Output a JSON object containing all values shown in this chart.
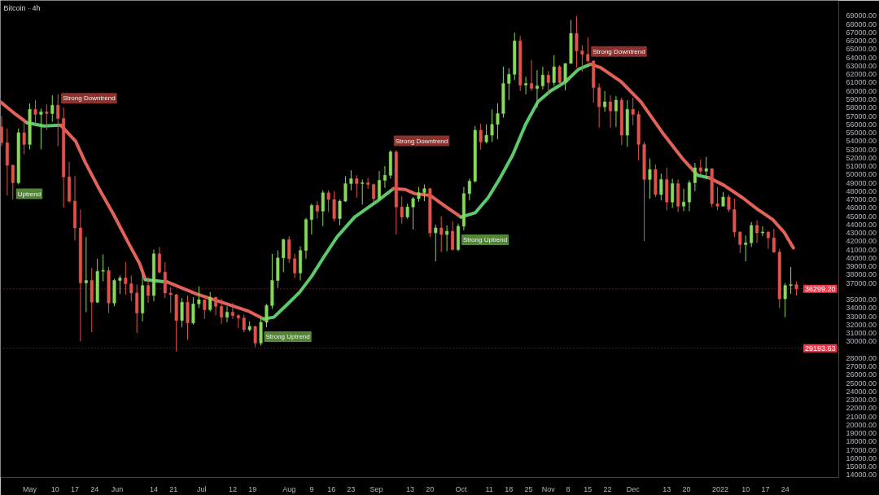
{
  "chart_data": {
    "type": "candlestick",
    "title": "Bitcoin · 4h",
    "xlim": [
      "2021-04-20T14:00",
      "2022-02-12"
    ],
    "ylim": [
      13700,
      70850
    ],
    "xticks": [
      {
        "value": "2021-05-01",
        "label": "May"
      },
      {
        "value": "2021-05-10",
        "label": "10"
      },
      {
        "value": "2021-05-17",
        "label": "17"
      },
      {
        "value": "2021-05-24",
        "label": "24"
      },
      {
        "value": "2021-06-01",
        "label": "Jun"
      },
      {
        "value": "2021-06-14",
        "label": "14"
      },
      {
        "value": "2021-06-21",
        "label": "21"
      },
      {
        "value": "2021-07-01",
        "label": "Jul"
      },
      {
        "value": "2021-07-12",
        "label": "12"
      },
      {
        "value": "2021-07-19",
        "label": "19"
      },
      {
        "value": "2021-08-01",
        "label": "Aug"
      },
      {
        "value": "2021-08-09",
        "label": "9"
      },
      {
        "value": "2021-08-16",
        "label": "16"
      },
      {
        "value": "2021-08-23",
        "label": "23"
      },
      {
        "value": "2021-09-01",
        "label": "Sep"
      },
      {
        "value": "2021-09-13",
        "label": "13"
      },
      {
        "value": "2021-09-20",
        "label": "20"
      },
      {
        "value": "2021-10-01",
        "label": "Oct"
      },
      {
        "value": "2021-10-11",
        "label": "11"
      },
      {
        "value": "2021-10-18",
        "label": "18"
      },
      {
        "value": "2021-10-25",
        "label": "25"
      },
      {
        "value": "2021-11-01",
        "label": "Nov"
      },
      {
        "value": "2021-11-08",
        "label": "8"
      },
      {
        "value": "2021-11-15",
        "label": "15"
      },
      {
        "value": "2021-11-22",
        "label": "22"
      },
      {
        "value": "2021-12-01",
        "label": "Dec"
      },
      {
        "value": "2021-12-13",
        "label": "13"
      },
      {
        "value": "2021-12-20",
        "label": "20"
      },
      {
        "value": "2022-01-01",
        "label": "2022"
      },
      {
        "value": "2022-01-10",
        "label": "10"
      },
      {
        "value": "2022-01-17",
        "label": "17"
      },
      {
        "value": "2022-01-24",
        "label": "24"
      }
    ],
    "yticks": [
      {
        "value": 14000,
        "label": "14000.00"
      },
      {
        "value": 15000,
        "label": "15000.00"
      },
      {
        "value": 16000,
        "label": "16000.00"
      },
      {
        "value": 17000,
        "label": "17000.00"
      },
      {
        "value": 18000,
        "label": "18000.00"
      },
      {
        "value": 19000,
        "label": "19000.00"
      },
      {
        "value": 20000,
        "label": "20000.00"
      },
      {
        "value": 21000,
        "label": "21000.00"
      },
      {
        "value": 22000,
        "label": "22000.00"
      },
      {
        "value": 23000,
        "label": "23000.00"
      },
      {
        "value": 24000,
        "label": "24000.00"
      },
      {
        "value": 25000,
        "label": "25000.00"
      },
      {
        "value": 26000,
        "label": "26000.00"
      },
      {
        "value": 27000,
        "label": "27000.00"
      },
      {
        "value": 28000,
        "label": "28000.00"
      },
      {
        "value": 30000,
        "label": "30000.00"
      },
      {
        "value": 31000,
        "label": "31000.00"
      },
      {
        "value": 32000,
        "label": "32000.00"
      },
      {
        "value": 33000,
        "label": "33000.00"
      },
      {
        "value": 34000,
        "label": "34000.00"
      },
      {
        "value": 35000,
        "label": "35000.00"
      },
      {
        "value": 37000,
        "label": "37000.00"
      },
      {
        "value": 38000,
        "label": "38000.00"
      },
      {
        "value": 39000,
        "label": "39000.00"
      },
      {
        "value": 40000,
        "label": "40000.00"
      },
      {
        "value": 41000,
        "label": "41000.00"
      },
      {
        "value": 42000,
        "label": "42000.00"
      },
      {
        "value": 43000,
        "label": "43000.00"
      },
      {
        "value": 44000,
        "label": "44000.00"
      },
      {
        "value": 45000,
        "label": "45000.00"
      },
      {
        "value": 46000,
        "label": "46000.00"
      },
      {
        "value": 47000,
        "label": "47000.00"
      },
      {
        "value": 48000,
        "label": "48000.00"
      },
      {
        "value": 49000,
        "label": "49000.00"
      },
      {
        "value": 50000,
        "label": "50000.00"
      },
      {
        "value": 51000,
        "label": "51000.00"
      },
      {
        "value": 52000,
        "label": "52000.00"
      },
      {
        "value": 53000,
        "label": "53000.00"
      },
      {
        "value": 54000,
        "label": "54000.00"
      },
      {
        "value": 55000,
        "label": "55000.00"
      },
      {
        "value": 56000,
        "label": "56000.00"
      },
      {
        "value": 57000,
        "label": "57000.00"
      },
      {
        "value": 58000,
        "label": "58000.00"
      },
      {
        "value": 59000,
        "label": "59000.00"
      },
      {
        "value": 60000,
        "label": "60000.00"
      },
      {
        "value": 61000,
        "label": "61000.00"
      },
      {
        "value": 62000,
        "label": "62000.00"
      },
      {
        "value": 63000,
        "label": "63000.00"
      },
      {
        "value": 64000,
        "label": "64000.00"
      },
      {
        "value": 65000,
        "label": "65000.00"
      },
      {
        "value": 66000,
        "label": "66000.00"
      },
      {
        "value": 67000,
        "label": "67000.00"
      },
      {
        "value": 68000,
        "label": "68000.00"
      },
      {
        "value": 69000,
        "label": "69000.00"
      }
    ],
    "x": [
      "2021-04-21",
      "2021-04-23",
      "2021-04-25",
      "2021-04-27",
      "2021-04-29",
      "2021-05-01",
      "2021-05-03",
      "2021-05-05",
      "2021-05-07",
      "2021-05-09",
      "2021-05-11",
      "2021-05-13",
      "2021-05-15",
      "2021-05-17",
      "2021-05-19",
      "2021-05-21",
      "2021-05-23",
      "2021-05-25",
      "2021-05-27",
      "2021-05-29",
      "2021-05-31",
      "2021-06-02",
      "2021-06-04",
      "2021-06-06",
      "2021-06-08",
      "2021-06-10",
      "2021-06-12",
      "2021-06-14",
      "2021-06-16",
      "2021-06-18",
      "2021-06-20",
      "2021-06-22",
      "2021-06-24",
      "2021-06-26",
      "2021-06-28",
      "2021-06-30",
      "2021-07-02",
      "2021-07-04",
      "2021-07-06",
      "2021-07-08",
      "2021-07-10",
      "2021-07-12",
      "2021-07-14",
      "2021-07-16",
      "2021-07-18",
      "2021-07-20",
      "2021-07-22",
      "2021-07-24",
      "2021-07-26",
      "2021-07-28",
      "2021-07-30",
      "2021-08-01",
      "2021-08-03",
      "2021-08-05",
      "2021-08-07",
      "2021-08-09",
      "2021-08-11",
      "2021-08-13",
      "2021-08-15",
      "2021-08-17",
      "2021-08-19",
      "2021-08-21",
      "2021-08-23",
      "2021-08-25",
      "2021-08-27",
      "2021-08-29",
      "2021-08-31",
      "2021-09-02",
      "2021-09-04",
      "2021-09-06",
      "2021-09-08",
      "2021-09-10",
      "2021-09-12",
      "2021-09-14",
      "2021-09-16",
      "2021-09-18",
      "2021-09-20",
      "2021-09-22",
      "2021-09-24",
      "2021-09-26",
      "2021-09-28",
      "2021-09-30",
      "2021-10-02",
      "2021-10-04",
      "2021-10-06",
      "2021-10-08",
      "2021-10-10",
      "2021-10-12",
      "2021-10-14",
      "2021-10-16",
      "2021-10-18",
      "2021-10-20",
      "2021-10-22",
      "2021-10-24",
      "2021-10-26",
      "2021-10-28",
      "2021-10-30",
      "2021-11-01",
      "2021-11-03",
      "2021-11-05",
      "2021-11-07",
      "2021-11-09",
      "2021-11-11",
      "2021-11-13",
      "2021-11-15",
      "2021-11-17",
      "2021-11-19",
      "2021-11-21",
      "2021-11-23",
      "2021-11-25",
      "2021-11-27",
      "2021-11-29",
      "2021-12-01",
      "2021-12-03",
      "2021-12-05",
      "2021-12-07",
      "2021-12-09",
      "2021-12-11",
      "2021-12-13",
      "2021-12-15",
      "2021-12-17",
      "2021-12-19",
      "2021-12-21",
      "2021-12-23",
      "2021-12-25",
      "2021-12-27",
      "2021-12-29",
      "2021-12-31",
      "2022-01-02",
      "2022-01-04",
      "2022-01-06",
      "2022-01-08",
      "2022-01-10",
      "2022-01-12",
      "2022-01-14",
      "2022-01-16",
      "2022-01-18",
      "2022-01-20",
      "2022-01-22",
      "2022-01-24",
      "2022-01-26",
      "2022-01-28"
    ],
    "ohlc": [
      [
        55700,
        57000,
        53400,
        53800
      ],
      [
        53800,
        55500,
        47500,
        51100
      ],
      [
        51100,
        51200,
        47000,
        49000
      ],
      [
        49000,
        55500,
        48800,
        55000
      ],
      [
        55000,
        56400,
        52400,
        53600
      ],
      [
        53600,
        58500,
        53000,
        57800
      ],
      [
        57800,
        58900,
        56000,
        57200
      ],
      [
        57200,
        57900,
        53000,
        57500
      ],
      [
        57500,
        58400,
        55300,
        57300
      ],
      [
        57300,
        59500,
        56300,
        58300
      ],
      [
        58300,
        59600,
        53400,
        56700
      ],
      [
        56700,
        58000,
        46000,
        49700
      ],
      [
        49700,
        51500,
        46600,
        46800
      ],
      [
        46800,
        49800,
        42100,
        43600
      ],
      [
        43600,
        45800,
        30000,
        37000
      ],
      [
        37000,
        42500,
        33500,
        37300
      ],
      [
        37300,
        38800,
        31100,
        34700
      ],
      [
        34700,
        39900,
        34600,
        38400
      ],
      [
        38400,
        40400,
        37200,
        38500
      ],
      [
        38500,
        38900,
        33400,
        34600
      ],
      [
        34600,
        37500,
        34200,
        37300
      ],
      [
        37300,
        37900,
        35700,
        37600
      ],
      [
        37600,
        39500,
        35600,
        36900
      ],
      [
        36900,
        37900,
        34800,
        35800
      ],
      [
        35800,
        36800,
        31000,
        33400
      ],
      [
        33400,
        38000,
        32400,
        36700
      ],
      [
        36700,
        37700,
        34600,
        35500
      ],
      [
        35500,
        41000,
        34800,
        40500
      ],
      [
        40500,
        41300,
        38100,
        38300
      ],
      [
        38300,
        39500,
        35200,
        35800
      ],
      [
        35800,
        36500,
        33400,
        35600
      ],
      [
        35600,
        35700,
        28800,
        32500
      ],
      [
        32500,
        35200,
        31700,
        34700
      ],
      [
        34700,
        35500,
        30200,
        32200
      ],
      [
        32200,
        35300,
        32000,
        34500
      ],
      [
        34500,
        36600,
        34000,
        35000
      ],
      [
        35000,
        35000,
        32700,
        33800
      ],
      [
        33800,
        35900,
        33600,
        35300
      ],
      [
        35300,
        35300,
        33100,
        34200
      ],
      [
        34200,
        35100,
        32100,
        32900
      ],
      [
        32900,
        34200,
        32300,
        33500
      ],
      [
        33500,
        34600,
        32700,
        33100
      ],
      [
        33100,
        33300,
        31600,
        32800
      ],
      [
        32800,
        33200,
        31100,
        31400
      ],
      [
        31400,
        32400,
        31200,
        31800
      ],
      [
        31800,
        31900,
        29300,
        29800
      ],
      [
        29800,
        32900,
        29500,
        32300
      ],
      [
        32300,
        34500,
        31700,
        34300
      ],
      [
        34300,
        40500,
        33900,
        37300
      ],
      [
        37300,
        40900,
        36400,
        40000
      ],
      [
        40000,
        42300,
        38300,
        42200
      ],
      [
        42200,
        42600,
        39400,
        39900
      ],
      [
        39900,
        40500,
        37600,
        38200
      ],
      [
        38200,
        41400,
        37300,
        40900
      ],
      [
        40900,
        44800,
        39900,
        44600
      ],
      [
        44600,
        46500,
        42800,
        46300
      ],
      [
        46300,
        46800,
        44700,
        45600
      ],
      [
        45600,
        48100,
        43800,
        47800
      ],
      [
        47800,
        48100,
        45500,
        47000
      ],
      [
        47000,
        48000,
        44400,
        44700
      ],
      [
        44700,
        47000,
        43900,
        46800
      ],
      [
        46800,
        49800,
        46700,
        48900
      ],
      [
        48900,
        50500,
        48100,
        49500
      ],
      [
        49500,
        49900,
        47200,
        48900
      ],
      [
        48900,
        49400,
        46400,
        49000
      ],
      [
        49000,
        49600,
        48300,
        48800
      ],
      [
        48800,
        48900,
        46700,
        47100
      ],
      [
        47100,
        50400,
        46900,
        49300
      ],
      [
        49300,
        51000,
        48400,
        49900
      ],
      [
        49900,
        52900,
        49500,
        52700
      ],
      [
        52700,
        52900,
        42800,
        46100
      ],
      [
        46100,
        47400,
        44100,
        44900
      ],
      [
        44900,
        46500,
        44700,
        46100
      ],
      [
        46100,
        47300,
        43400,
        47100
      ],
      [
        47100,
        48500,
        46700,
        47800
      ],
      [
        47800,
        48800,
        46800,
        48300
      ],
      [
        48300,
        48400,
        42500,
        43000
      ],
      [
        43000,
        44000,
        39600,
        43600
      ],
      [
        43600,
        45000,
        40700,
        42800
      ],
      [
        42800,
        43900,
        40800,
        43200
      ],
      [
        43200,
        44400,
        40900,
        41000
      ],
      [
        41000,
        44100,
        40800,
        43800
      ],
      [
        43800,
        48500,
        43300,
        47700
      ],
      [
        47700,
        49500,
        46900,
        49200
      ],
      [
        49200,
        55800,
        49000,
        55300
      ],
      [
        55300,
        56100,
        53000,
        53900
      ],
      [
        53900,
        56000,
        53700,
        54700
      ],
      [
        54700,
        57800,
        53900,
        56000
      ],
      [
        56000,
        58500,
        54200,
        57300
      ],
      [
        57300,
        62900,
        56800,
        60900
      ],
      [
        60900,
        62700,
        58900,
        62000
      ],
      [
        62000,
        67000,
        61300,
        66000
      ],
      [
        66000,
        66600,
        60000,
        60700
      ],
      [
        60700,
        61700,
        59600,
        60900
      ],
      [
        60900,
        63700,
        60000,
        60300
      ],
      [
        60300,
        62500,
        58000,
        60600
      ],
      [
        60600,
        62900,
        60200,
        61900
      ],
      [
        61900,
        62400,
        59500,
        61000
      ],
      [
        61000,
        64300,
        60600,
        62900
      ],
      [
        62900,
        63100,
        60700,
        61000
      ],
      [
        61000,
        63300,
        60100,
        63300
      ],
      [
        63300,
        68500,
        63300,
        66900
      ],
      [
        66900,
        69000,
        62800,
        64800
      ],
      [
        64800,
        65500,
        62300,
        64400
      ],
      [
        64400,
        66400,
        63400,
        63600
      ],
      [
        63600,
        63600,
        58600,
        60400
      ],
      [
        60400,
        60900,
        55600,
        58100
      ],
      [
        58100,
        60000,
        57500,
        58700
      ],
      [
        58700,
        59500,
        55600,
        57600
      ],
      [
        57600,
        59400,
        55700,
        58900
      ],
      [
        58900,
        59200,
        53500,
        54700
      ],
      [
        54700,
        58900,
        53300,
        57800
      ],
      [
        57800,
        59200,
        55900,
        57200
      ],
      [
        57200,
        57600,
        51700,
        53600
      ],
      [
        53600,
        53900,
        42000,
        49400
      ],
      [
        49400,
        51900,
        47100,
        50600
      ],
      [
        50600,
        51200,
        47300,
        47600
      ],
      [
        47600,
        50100,
        46900,
        49400
      ],
      [
        49400,
        50800,
        45700,
        46700
      ],
      [
        46700,
        49500,
        46000,
        48900
      ],
      [
        48900,
        49400,
        45500,
        46200
      ],
      [
        46200,
        48300,
        45600,
        46700
      ],
      [
        46700,
        49300,
        45600,
        49000
      ],
      [
        49000,
        51400,
        48000,
        50800
      ],
      [
        50800,
        51800,
        50000,
        50400
      ],
      [
        50400,
        52100,
        49400,
        50700
      ],
      [
        50700,
        50700,
        46100,
        46500
      ],
      [
        46500,
        48500,
        45700,
        46200
      ],
      [
        46200,
        47900,
        46200,
        47300
      ],
      [
        47300,
        47600,
        45500,
        45800
      ],
      [
        45800,
        47100,
        42500,
        43100
      ],
      [
        43100,
        43200,
        40600,
        41600
      ],
      [
        41600,
        42700,
        39600,
        41800
      ],
      [
        41800,
        44300,
        41300,
        43900
      ],
      [
        43900,
        44500,
        41800,
        43000
      ],
      [
        43000,
        43800,
        42600,
        43100
      ],
      [
        43100,
        43200,
        41100,
        42400
      ],
      [
        42400,
        43500,
        40600,
        40700
      ],
      [
        40700,
        41100,
        34000,
        35100
      ],
      [
        35100,
        37000,
        32900,
        36700
      ],
      [
        36700,
        38900,
        35700,
        36800
      ],
      [
        36800,
        37200,
        35500,
        36299.2
      ]
    ],
    "colors": [
      "#e0524a",
      "#e0524a",
      "#e0524a",
      "#86d95b",
      "#e0524a",
      "#86d95b",
      "#e0524a",
      "#86d95b",
      "#e0524a",
      "#86d95b",
      "#e0524a",
      "#e0524a",
      "#e0524a",
      "#e0524a",
      "#e0524a",
      "#86d95b",
      "#e0524a",
      "#86d95b",
      "#86d95b",
      "#e0524a",
      "#86d95b",
      "#86d95b",
      "#e0524a",
      "#e0524a",
      "#e0524a",
      "#86d95b",
      "#e0524a",
      "#86d95b",
      "#e0524a",
      "#e0524a",
      "#e0524a",
      "#e0524a",
      "#86d95b",
      "#e0524a",
      "#86d95b",
      "#86d95b",
      "#e0524a",
      "#86d95b",
      "#e0524a",
      "#e0524a",
      "#86d95b",
      "#e0524a",
      "#e0524a",
      "#e0524a",
      "#86d95b",
      "#e0524a",
      "#86d95b",
      "#86d95b",
      "#86d95b",
      "#86d95b",
      "#86d95b",
      "#e0524a",
      "#e0524a",
      "#86d95b",
      "#86d95b",
      "#86d95b",
      "#e0524a",
      "#86d95b",
      "#e0524a",
      "#e0524a",
      "#86d95b",
      "#86d95b",
      "#86d95b",
      "#e0524a",
      "#86d95b",
      "#e0524a",
      "#e0524a",
      "#86d95b",
      "#86d95b",
      "#86d95b",
      "#e0524a",
      "#e0524a",
      "#86d95b",
      "#86d95b",
      "#86d95b",
      "#86d95b",
      "#e0524a",
      "#86d95b",
      "#e0524a",
      "#86d95b",
      "#e0524a",
      "#86d95b",
      "#86d95b",
      "#86d95b",
      "#86d95b",
      "#e0524a",
      "#86d95b",
      "#86d95b",
      "#86d95b",
      "#86d95b",
      "#86d95b",
      "#86d95b",
      "#e0524a",
      "#86d95b",
      "#e0524a",
      "#86d95b",
      "#86d95b",
      "#e0524a",
      "#86d95b",
      "#e0524a",
      "#86d95b",
      "#86d95b",
      "#e0524a",
      "#e0524a",
      "#e0524a",
      "#e0524a",
      "#e0524a",
      "#86d95b",
      "#e0524a",
      "#86d95b",
      "#e0524a",
      "#86d95b",
      "#e0524a",
      "#e0524a",
      "#e0524a",
      "#86d95b",
      "#e0524a",
      "#86d95b",
      "#e0524a",
      "#86d95b",
      "#e0524a",
      "#86d95b",
      "#86d95b",
      "#86d95b",
      "#e0524a",
      "#86d95b",
      "#e0524a",
      "#e0524a",
      "#86d95b",
      "#e0524a",
      "#e0524a",
      "#e0524a",
      "#86d95b",
      "#86d95b",
      "#e0524a",
      "#86d95b",
      "#e0524a",
      "#e0524a",
      "#e0524a",
      "#86d95b",
      "#86d95b",
      "#e0524a"
    ],
    "series": [
      {
        "type": "line",
        "color": "#e2625a",
        "x": [
          "2021-04-20T14:00",
          "2021-04-26",
          "2021-04-30"
        ],
        "values": [
          58700,
          57200,
          56200
        ]
      },
      {
        "type": "line",
        "color": "#5cc96b",
        "x": [
          "2021-04-30",
          "2021-05-06",
          "2021-05-12"
        ],
        "values": [
          56200,
          55800,
          55900
        ]
      },
      {
        "type": "line",
        "color": "#e2625a",
        "x": [
          "2021-05-12",
          "2021-05-17T06:00",
          "2021-05-20T18:00",
          "2021-05-25T06:00",
          "2021-05-30T18:00",
          "2021-06-05",
          "2021-06-09",
          "2021-06-11"
        ],
        "values": [
          55900,
          54000,
          51400,
          48500,
          45200,
          41800,
          39300,
          37400
        ]
      },
      {
        "type": "line",
        "color": "#5cc96b",
        "x": [
          "2021-06-11",
          "2021-06-19"
        ],
        "values": [
          37400,
          37100
        ]
      },
      {
        "type": "line",
        "color": "#e2625a",
        "x": [
          "2021-06-19",
          "2021-06-29",
          "2021-07-09T18:00",
          "2021-07-17T18:00",
          "2021-07-23"
        ],
        "values": [
          37100,
          35700,
          34500,
          33600,
          32700
        ]
      },
      {
        "type": "line",
        "color": "#5cc96b",
        "x": [
          "2021-07-23",
          "2021-07-26T14:00",
          "2021-07-31T06:00",
          "2021-08-04T18:00",
          "2021-08-09",
          "2021-08-13T12:00",
          "2021-08-18",
          "2021-08-24T06:00",
          "2021-09-01T06:00",
          "2021-09-07"
        ],
        "values": [
          32700,
          32900,
          34400,
          35900,
          37800,
          40200,
          42500,
          44900,
          46800,
          48300
        ]
      },
      {
        "type": "line",
        "color": "#e2625a",
        "x": [
          "2021-09-07",
          "2021-09-11T06:00",
          "2021-09-14T14:00",
          "2021-09-20",
          "2021-09-24T12:00",
          "2021-10-01"
        ],
        "values": [
          48300,
          48200,
          47700,
          47500,
          46400,
          44900
        ]
      },
      {
        "type": "line",
        "color": "#5cc96b",
        "x": [
          "2021-10-01",
          "2021-10-06",
          "2021-10-10T14:00",
          "2021-10-14T18:00",
          "2021-10-19T10:00",
          "2021-10-23T22:00",
          "2021-10-28T06:00",
          "2021-11-01T18:00",
          "2021-11-07T02:00",
          "2021-11-11T16:00",
          "2021-11-16"
        ],
        "values": [
          44900,
          45400,
          47200,
          49500,
          52400,
          56000,
          58700,
          60000,
          61100,
          62600,
          63200
        ]
      },
      {
        "type": "line",
        "color": "#e2625a",
        "x": [
          "2021-11-16",
          "2021-11-19T14:00",
          "2021-11-26T20:00",
          "2021-12-03T20:00",
          "2021-12-11T22:00",
          "2021-12-18T14:00",
          "2021-12-24"
        ],
        "values": [
          63200,
          62800,
          61100,
          58700,
          54800,
          51900,
          49900
        ]
      },
      {
        "type": "line",
        "color": "#5cc96b",
        "x": [
          "2021-12-24",
          "2021-12-28"
        ],
        "values": [
          49900,
          49600
        ]
      },
      {
        "type": "line",
        "color": "#e2625a",
        "x": [
          "2021-12-28",
          "2022-01-02T08:00",
          "2022-01-08T22:00",
          "2022-01-14T08:00",
          "2022-01-19T14:00",
          "2022-01-23T14:00",
          "2022-01-26T22:00"
        ],
        "values": [
          49600,
          48700,
          47200,
          45800,
          44600,
          43100,
          41200
        ]
      }
    ],
    "ref_lines": [
      {
        "axis": "y",
        "value": 36299.2,
        "label": "36299.20",
        "color": "#f23645",
        "line_style": "dotted"
      },
      {
        "axis": "y",
        "value": 29193.63,
        "label": "29193.63",
        "color": "#f23645",
        "line_style": "dotted"
      }
    ],
    "annotations": [
      {
        "text": "Uptrend",
        "x": "2021-04-27",
        "y": 48800
      },
      {
        "text": "Strong Downtrend",
        "x": "2021-05-13",
        "y": 58000
      },
      {
        "text": "Strong Uptrend",
        "x": "2021-07-24",
        "y": 31700
      },
      {
        "text": "Strong Downtrend",
        "x": "2021-09-08",
        "y": 52900
      },
      {
        "text": "Strong Uptrend",
        "x": "2021-10-02",
        "y": 43300
      },
      {
        "text": "Strong Downtrend",
        "x": "2021-11-17",
        "y": 63600
      }
    ]
  }
}
